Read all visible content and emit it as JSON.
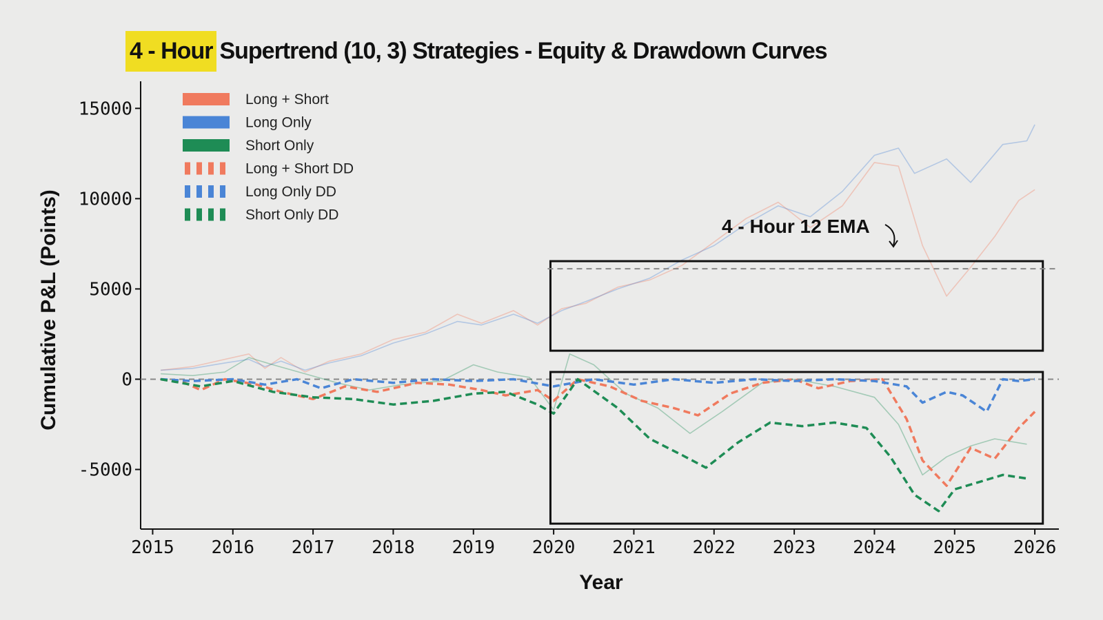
{
  "title": {
    "highlight": "4 - Hour",
    "rest": "Supertrend (10, 3) Strategies - Equity & Drawdown Curves"
  },
  "colors": {
    "long_short": "#f07a5e",
    "long_only": "#4a85d6",
    "short_only": "#1e8c55",
    "highlight": "#f0dd22",
    "background": "#ebebea"
  },
  "chart_data": {
    "type": "line",
    "title": "4 - Hour Supertrend (10, 3) Strategies - Equity & Drawdown Curves",
    "xlabel": "Year",
    "ylabel": "Cumulative P&L (Points)",
    "xlim": [
      2014.85,
      2026.3
    ],
    "ylim": [
      -8300,
      16500
    ],
    "x_ticks": [
      2015,
      2016,
      2017,
      2018,
      2019,
      2020,
      2021,
      2022,
      2023,
      2024,
      2025,
      2026
    ],
    "y_ticks": [
      15000,
      10000,
      5000,
      0,
      -5000
    ],
    "legend": [
      "Long + Short",
      "Long Only",
      "Short Only",
      "Long + Short DD",
      "Long Only DD",
      "Short Only DD"
    ],
    "legend_position": "top-left",
    "baseline": 0,
    "annotation": {
      "text": "4 - Hour 12 EMA",
      "highlight_years": [
        2019.96,
        2026.1
      ],
      "equity_range": [
        6500,
        5800
      ],
      "drawdown_range": [
        -7800,
        -4800
      ]
    },
    "series": [
      {
        "name": "Long + Short",
        "style": "solid",
        "color_key": "long_short",
        "x": [
          2015.1,
          2015.5,
          2015.9,
          2016.2,
          2016.4,
          2016.6,
          2016.9,
          2017.2,
          2017.6,
          2018.0,
          2018.4,
          2018.8,
          2019.1,
          2019.5,
          2019.8,
          2020.1,
          2020.4,
          2020.8,
          2021.2,
          2021.6,
          2022.0,
          2022.4,
          2022.8,
          2023.2,
          2023.6,
          2024.0,
          2024.3,
          2024.6,
          2024.9,
          2025.2,
          2025.5,
          2025.8,
          2026.0
        ],
        "values": [
          500,
          700,
          1100,
          1400,
          600,
          1200,
          400,
          1000,
          1400,
          2200,
          2600,
          3600,
          3100,
          3800,
          3000,
          3900,
          4200,
          5100,
          5500,
          6300,
          7600,
          8900,
          9800,
          8400,
          9600,
          12000,
          11800,
          7400,
          4600,
          6200,
          7900,
          9900,
          10500
        ]
      },
      {
        "name": "Long Only",
        "style": "solid",
        "color_key": "long_only",
        "x": [
          2015.1,
          2015.5,
          2015.9,
          2016.2,
          2016.4,
          2016.6,
          2016.9,
          2017.2,
          2017.6,
          2018.0,
          2018.4,
          2018.8,
          2019.1,
          2019.5,
          2019.8,
          2020.1,
          2020.4,
          2020.8,
          2021.2,
          2021.6,
          2022.0,
          2022.4,
          2022.8,
          2023.2,
          2023.6,
          2024.0,
          2024.3,
          2024.5,
          2024.9,
          2025.2,
          2025.6,
          2025.9,
          2026.0
        ],
        "values": [
          500,
          600,
          900,
          1100,
          700,
          1000,
          500,
          900,
          1300,
          2000,
          2500,
          3200,
          3000,
          3600,
          3100,
          3800,
          4300,
          5000,
          5600,
          6600,
          7400,
          8600,
          9600,
          9000,
          10400,
          12400,
          12800,
          11400,
          12200,
          10900,
          13000,
          13200,
          14100
        ]
      },
      {
        "name": "Short Only",
        "style": "solid",
        "color_key": "short_only",
        "x": [
          2015.1,
          2015.5,
          2015.9,
          2016.2,
          2016.5,
          2016.9,
          2017.3,
          2017.7,
          2018.1,
          2018.6,
          2019.0,
          2019.3,
          2019.7,
          2020.0,
          2020.2,
          2020.5,
          2020.9,
          2021.3,
          2021.7,
          2022.1,
          2022.6,
          2023.0,
          2023.5,
          2024.0,
          2024.3,
          2024.6,
          2024.9,
          2025.2,
          2025.5,
          2025.9
        ],
        "values": [
          300,
          200,
          400,
          1200,
          800,
          300,
          -200,
          -600,
          -300,
          -100,
          800,
          400,
          100,
          -1700,
          1400,
          800,
          -800,
          -1600,
          -3000,
          -1800,
          -200,
          0,
          -400,
          -1000,
          -2500,
          -5300,
          -4300,
          -3700,
          -3300,
          -3600
        ]
      },
      {
        "name": "Long + Short DD",
        "style": "dashed",
        "color_key": "long_short",
        "x": [
          2015.1,
          2015.4,
          2015.6,
          2015.9,
          2016.3,
          2016.6,
          2017.0,
          2017.4,
          2017.8,
          2018.3,
          2018.7,
          2019.1,
          2019.4,
          2019.8,
          2020.0,
          2020.3,
          2020.7,
          2021.1,
          2021.5,
          2021.8,
          2022.2,
          2022.6,
          2023.0,
          2023.3,
          2023.7,
          2024.1,
          2024.4,
          2024.6,
          2024.9,
          2025.2,
          2025.5,
          2025.8,
          2026.0
        ],
        "values": [
          0,
          -200,
          -600,
          0,
          -300,
          -700,
          -1100,
          -400,
          -700,
          -200,
          -300,
          -600,
          -900,
          -600,
          -1200,
          0,
          -400,
          -1200,
          -1600,
          -2000,
          -800,
          -200,
          0,
          -500,
          -100,
          0,
          -2200,
          -4500,
          -5900,
          -3800,
          -4400,
          -2700,
          -1800
        ]
      },
      {
        "name": "Long Only DD",
        "style": "dashed",
        "color_key": "long_only",
        "x": [
          2015.1,
          2015.5,
          2016.0,
          2016.4,
          2016.8,
          2017.1,
          2017.5,
          2018.0,
          2018.5,
          2019.0,
          2019.5,
          2020.0,
          2020.5,
          2021.0,
          2021.5,
          2022.0,
          2022.5,
          2023.0,
          2023.5,
          2024.0,
          2024.4,
          2024.6,
          2024.9,
          2025.1,
          2025.4,
          2025.6,
          2025.8,
          2026.0
        ],
        "values": [
          0,
          -100,
          0,
          -300,
          0,
          -500,
          0,
          -200,
          0,
          -100,
          0,
          -400,
          0,
          -300,
          0,
          -200,
          0,
          -100,
          0,
          -100,
          -400,
          -1300,
          -700,
          -900,
          -1800,
          0,
          -100,
          0
        ]
      },
      {
        "name": "Short Only DD",
        "style": "dashed",
        "color_key": "short_only",
        "x": [
          2015.1,
          2015.6,
          2016.0,
          2016.5,
          2017.0,
          2017.5,
          2018.0,
          2018.5,
          2019.0,
          2019.4,
          2019.8,
          2020.0,
          2020.3,
          2020.8,
          2021.2,
          2021.6,
          2021.9,
          2022.3,
          2022.7,
          2023.1,
          2023.5,
          2023.9,
          2024.2,
          2024.5,
          2024.8,
          2025.0,
          2025.3,
          2025.6,
          2025.9
        ],
        "values": [
          0,
          -400,
          -100,
          -700,
          -1000,
          -1100,
          -1400,
          -1200,
          -800,
          -700,
          -1400,
          -1900,
          0,
          -1600,
          -3300,
          -4200,
          -4900,
          -3500,
          -2400,
          -2600,
          -2400,
          -2700,
          -4300,
          -6400,
          -7300,
          -6100,
          -5700,
          -5300,
          -5500
        ]
      }
    ]
  }
}
